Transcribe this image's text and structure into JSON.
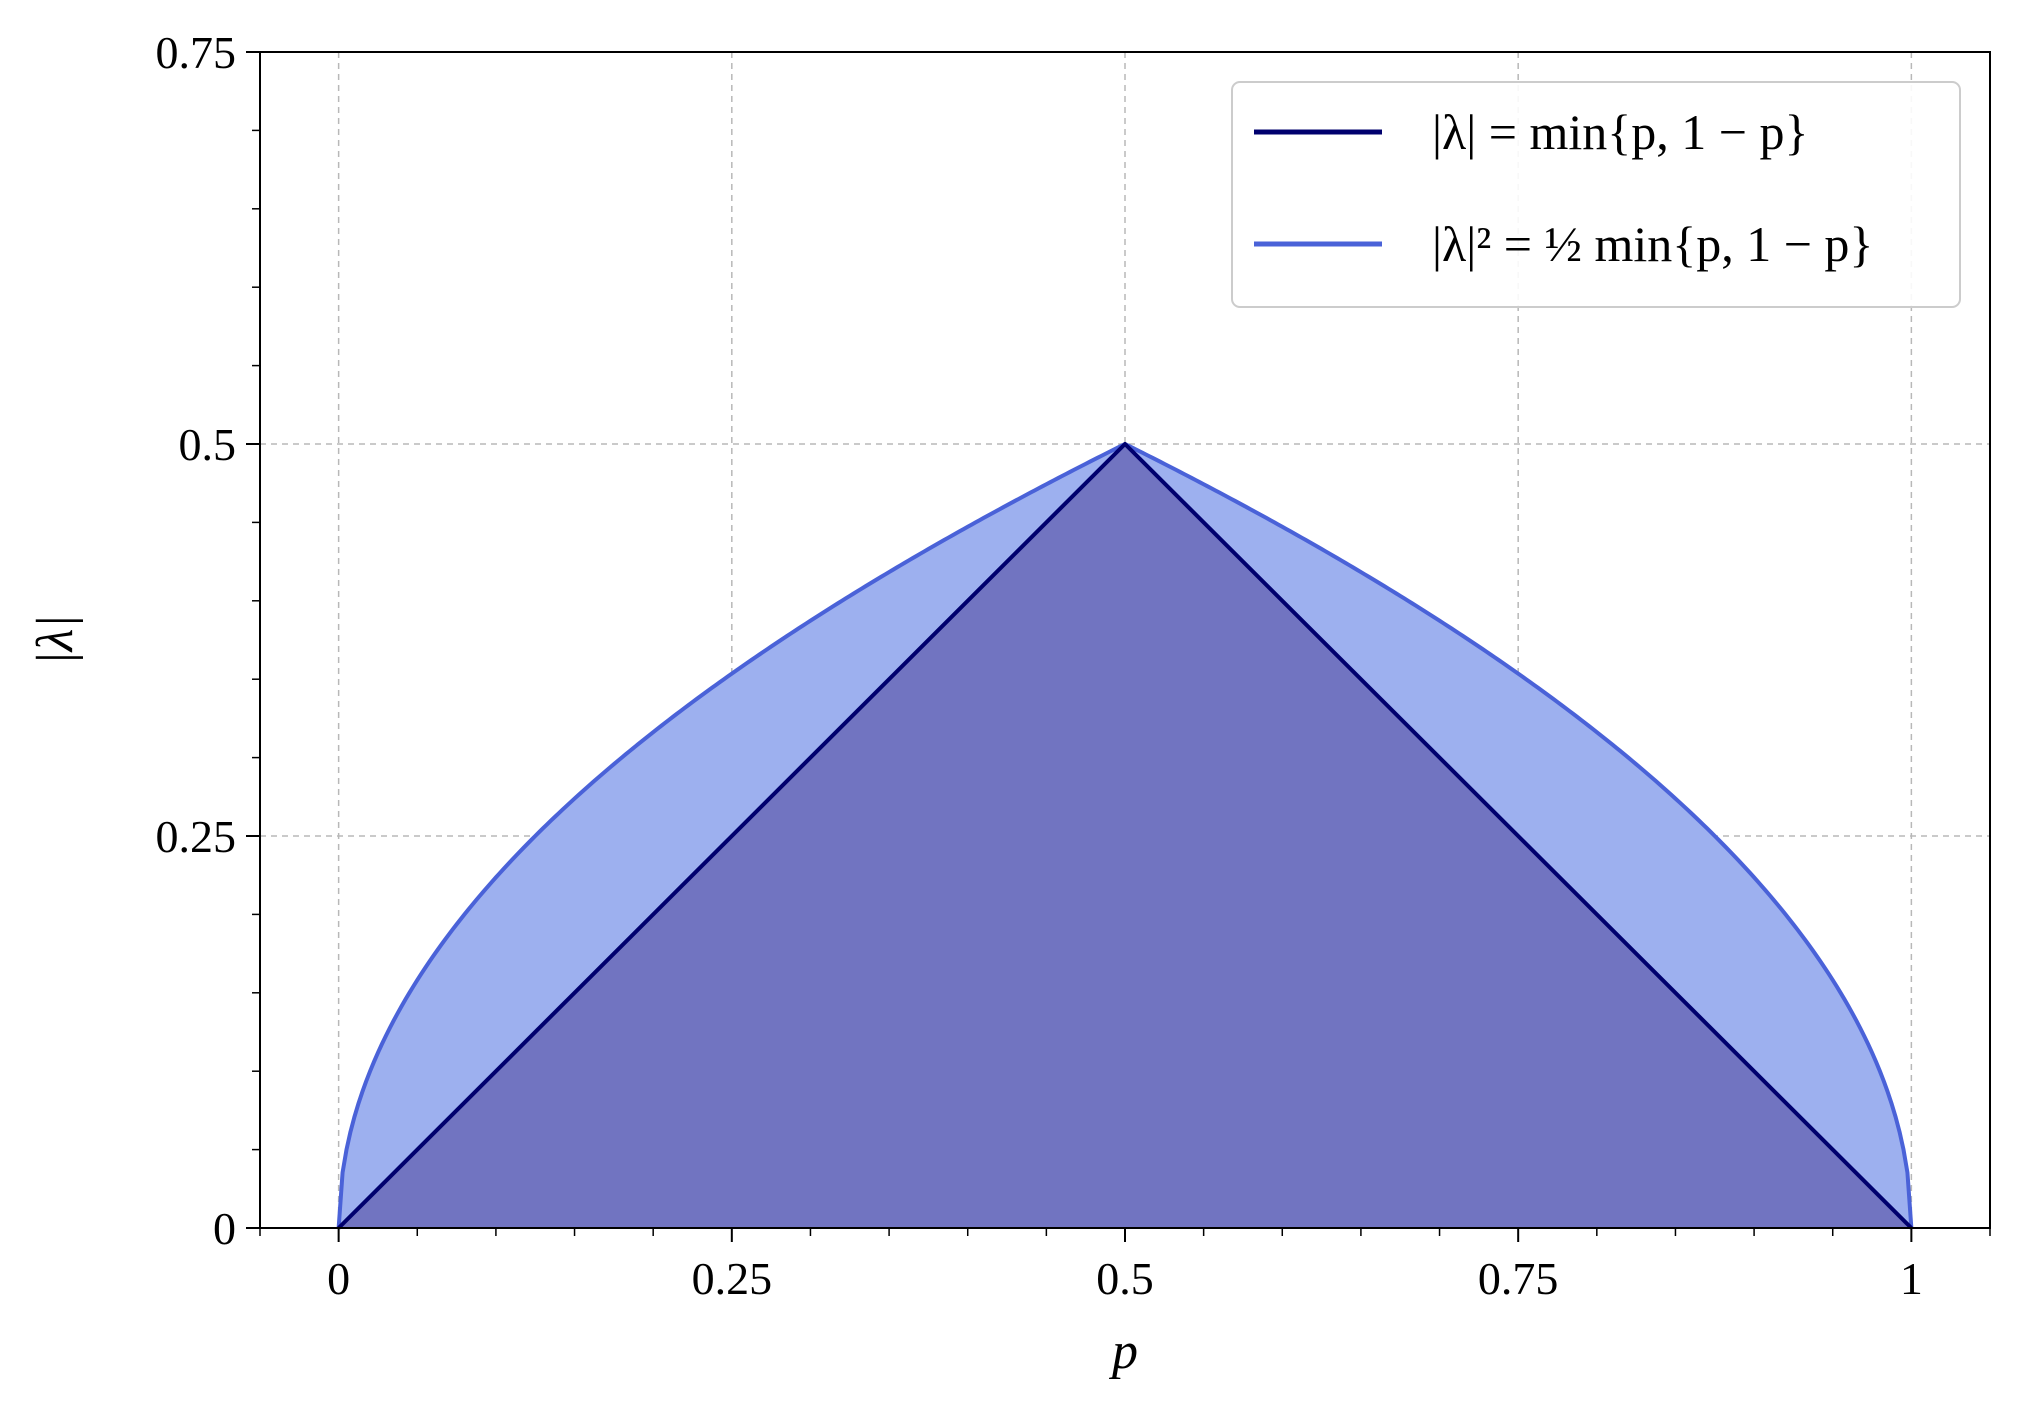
{
  "chart_data": {
    "type": "area",
    "xlabel": "p",
    "ylabel": "|λ|",
    "xlim": [
      -0.05,
      1.05
    ],
    "ylim": [
      0,
      0.75
    ],
    "xticks": [
      0,
      0.25,
      0.5,
      0.75,
      1
    ],
    "xtick_labels": [
      "0",
      "0.25",
      "0.5",
      "0.75",
      "1"
    ],
    "yticks": [
      0,
      0.25,
      0.5,
      0.75
    ],
    "ytick_labels": [
      "0",
      "0.25",
      "0.5",
      "0.75"
    ],
    "grid": true,
    "legend_position": "top-right",
    "series": [
      {
        "name": "|λ| = min{p, 1 − p}",
        "color": "#00006e",
        "fill": "#6a6ab8",
        "x": [
          0,
          0.5,
          1
        ],
        "y": [
          0,
          0.5,
          0
        ]
      },
      {
        "name": "|λ|² = ½ min{p, 1 − p}",
        "color": "#4a62d8",
        "fill": "#9db0ef",
        "x": [
          0,
          0.01,
          0.05,
          0.1,
          0.15,
          0.2,
          0.25,
          0.3,
          0.35,
          0.4,
          0.45,
          0.5,
          0.55,
          0.6,
          0.65,
          0.7,
          0.75,
          0.8,
          0.85,
          0.9,
          0.95,
          0.99,
          1
        ],
        "y": [
          0,
          0.0707,
          0.1581,
          0.2236,
          0.2739,
          0.3162,
          0.3536,
          0.3873,
          0.4183,
          0.4472,
          0.4743,
          0.5,
          0.4743,
          0.4472,
          0.4183,
          0.3873,
          0.3536,
          0.3162,
          0.2739,
          0.2236,
          0.1581,
          0.0707,
          0
        ]
      }
    ]
  }
}
